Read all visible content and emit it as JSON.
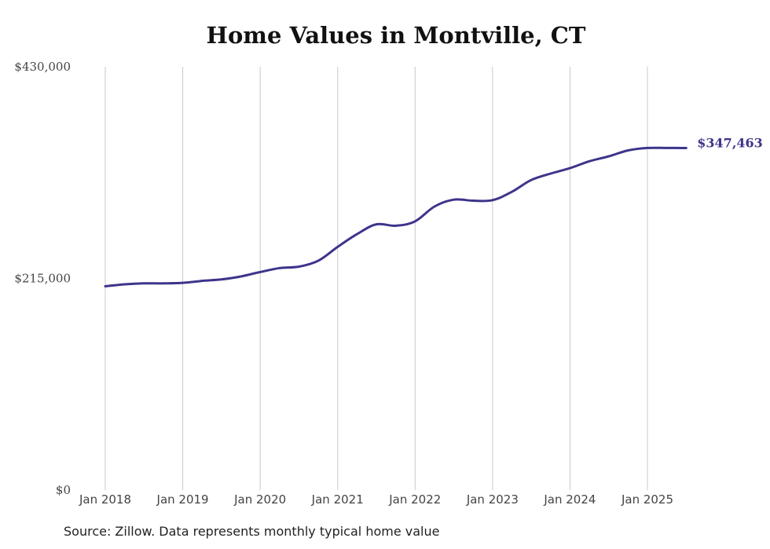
{
  "chart_data": {
    "type": "line",
    "title": "Home Values in Montville, CT",
    "xlabel": "",
    "ylabel": "",
    "ylim": [
      0,
      430000
    ],
    "y_ticks": [
      "$0",
      "$215,000",
      "$430,000"
    ],
    "y_tick_values": [
      0,
      215000,
      430000
    ],
    "x_ticks": [
      "Jan 2018",
      "Jan 2019",
      "Jan 2020",
      "Jan 2021",
      "Jan 2022",
      "Jan 2023",
      "Jan 2024",
      "Jan 2025"
    ],
    "x_tick_values": [
      2018,
      2019,
      2020,
      2021,
      2022,
      2023,
      2024,
      2025
    ],
    "grid": "vertical",
    "line_color": "#3d348b",
    "end_label": "$347,463",
    "series": [
      {
        "x": [
          2018.0,
          2018.25,
          2018.5,
          2018.75,
          2019.0,
          2019.25,
          2019.5,
          2019.75,
          2020.0,
          2020.25,
          2020.5,
          2020.75,
          2021.0,
          2021.25,
          2021.5,
          2021.75,
          2022.0,
          2022.25,
          2022.5,
          2022.75,
          2023.0,
          2023.25,
          2023.5,
          2023.75,
          2024.0,
          2024.25,
          2024.5,
          2024.75,
          2025.0,
          2025.25,
          2025.5
        ],
        "y": [
          207000,
          209000,
          210000,
          210000,
          210500,
          212500,
          214000,
          217000,
          221500,
          225500,
          227000,
          233000,
          247000,
          260000,
          270000,
          268500,
          273000,
          288000,
          295000,
          294000,
          294500,
          303000,
          315000,
          321500,
          327000,
          334000,
          339000,
          345000,
          347500,
          347500,
          347463
        ]
      }
    ]
  },
  "footer": {
    "source": "Source: Zillow. Data represents monthly typical home value"
  }
}
